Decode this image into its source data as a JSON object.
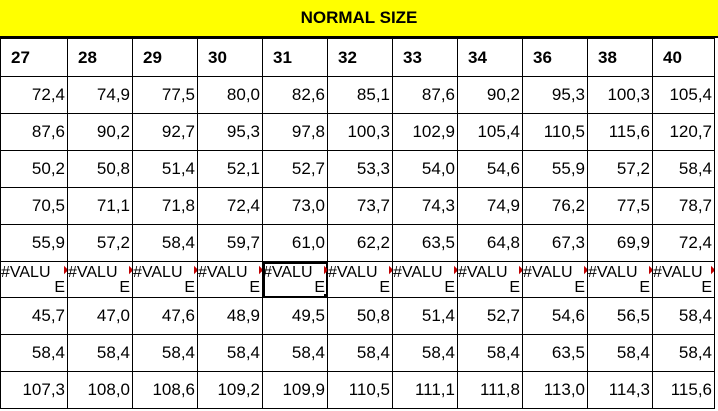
{
  "title": "NORMAL SIZE",
  "sizes": [
    "27",
    "28",
    "29",
    "30",
    "31",
    "32",
    "33",
    "34",
    "36",
    "38",
    "40"
  ],
  "rows": [
    [
      "72,4",
      "74,9",
      "77,5",
      "80,0",
      "82,6",
      "85,1",
      "87,6",
      "90,2",
      "95,3",
      "100,3",
      "105,4"
    ],
    [
      "87,6",
      "90,2",
      "92,7",
      "95,3",
      "97,8",
      "100,3",
      "102,9",
      "105,4",
      "110,5",
      "115,6",
      "120,7"
    ],
    [
      "50,2",
      "50,8",
      "51,4",
      "52,1",
      "52,7",
      "53,3",
      "54,0",
      "54,6",
      "55,9",
      "57,2",
      "58,4"
    ],
    [
      "70,5",
      "71,1",
      "71,8",
      "72,4",
      "73,0",
      "73,7",
      "74,3",
      "74,9",
      "76,2",
      "77,5",
      "78,7"
    ],
    [
      "55,9",
      "57,2",
      "58,4",
      "59,7",
      "61,0",
      "62,2",
      "63,5",
      "64,8",
      "67,3",
      "69,9",
      "72,4"
    ]
  ],
  "error_row": {
    "line1": [
      "#VALU",
      "#VALU",
      "#VALU",
      "#VALU",
      "#VALU",
      "#VALU",
      "#VALU",
      "#VALU",
      "#VALU",
      "#VALU",
      "#VALU"
    ],
    "line2": [
      "E",
      "E",
      "E",
      "E",
      "E",
      "E",
      "E",
      "E",
      "E",
      "E",
      "E"
    ]
  },
  "rows_after": [
    [
      "45,7",
      "47,0",
      "47,6",
      "48,9",
      "49,5",
      "50,8",
      "51,4",
      "52,7",
      "54,6",
      "56,5",
      "58,4"
    ],
    [
      "58,4",
      "58,4",
      "58,4",
      "58,4",
      "58,4",
      "58,4",
      "58,4",
      "58,4",
      "63,5",
      "58,4",
      "58,4"
    ],
    [
      "107,3",
      "108,0",
      "108,6",
      "109,2",
      "109,9",
      "110,5",
      "111,1",
      "111,8",
      "113,0",
      "114,3",
      "115,6"
    ]
  ],
  "colors": {
    "title_bg": "#ffff00",
    "error_marker": "#c00000"
  }
}
